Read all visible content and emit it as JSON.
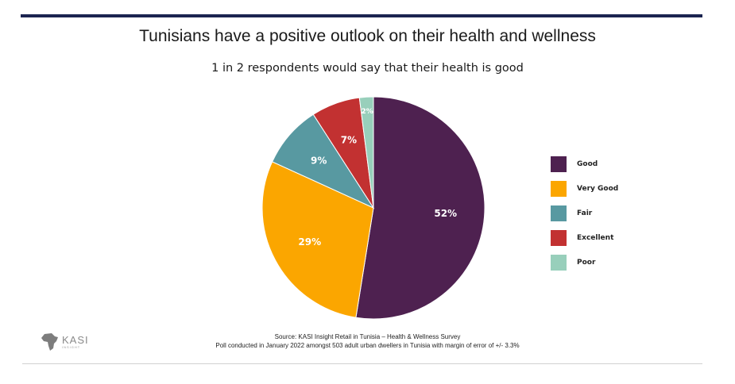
{
  "title": "Tunisians have a positive outlook on their health and wellness",
  "subtitle": "1 in 2 respondents would say that their health is good",
  "chart_data": {
    "type": "pie",
    "title": "Tunisians have a positive outlook on their health and wellness",
    "subtitle": "1 in 2 respondents would say that their health is good",
    "labels": [
      "Good",
      "Very Good",
      "Fair",
      "Excellent",
      "Poor"
    ],
    "values": [
      52,
      29,
      9,
      7,
      2
    ],
    "value_labels": [
      "52%",
      "29%",
      "9%",
      "7%",
      "2%"
    ],
    "colors": [
      "#4e2150",
      "#fba600",
      "#5899a1",
      "#c23131",
      "#98cfbb"
    ],
    "start": "12 o'clock, clockwise",
    "legend_position": "right"
  },
  "source": {
    "line1": "Source: KASI Insight Retail in Tunisia – Health & Wellness Survey",
    "line2": "Poll conducted in January 2022 amongst 503 adult urban dwellers in Tunisia with margin of error of +/- 3.3%"
  },
  "logo": {
    "name": "KASI",
    "tagline": "INSIGHT",
    "icon": "africa-map-icon"
  }
}
